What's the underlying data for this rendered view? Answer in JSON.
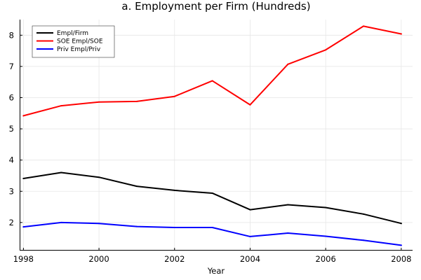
{
  "chart_data": {
    "type": "line",
    "title": "a. Employment per Firm (Hundreds)",
    "xlabel": "Year",
    "ylabel": "",
    "xlim": [
      1997.9,
      2008.3
    ],
    "ylim": [
      1.1,
      8.5
    ],
    "xticks": [
      1998,
      2000,
      2002,
      2004,
      2006,
      2008
    ],
    "yticks": [
      2,
      3,
      4,
      5,
      6,
      7,
      8
    ],
    "grid": true,
    "legend_position": "top-left",
    "x": [
      1998,
      1999,
      2000,
      2001,
      2002,
      2003,
      2004,
      2005,
      2006,
      2007,
      2008
    ],
    "series": [
      {
        "name": "Empl/Firm",
        "color": "#000000",
        "values": [
          3.41,
          3.6,
          3.45,
          3.16,
          3.03,
          2.94,
          2.41,
          2.57,
          2.48,
          2.27,
          1.97
        ]
      },
      {
        "name": "SOE Empl/SOE",
        "color": "#ff0000",
        "values": [
          5.42,
          5.74,
          5.86,
          5.88,
          6.04,
          6.54,
          5.77,
          7.07,
          7.53,
          8.29,
          8.04
        ]
      },
      {
        "name": "Priv Empl/Priv",
        "color": "#0000ff",
        "values": [
          1.86,
          2.0,
          1.97,
          1.87,
          1.84,
          1.84,
          1.55,
          1.66,
          1.56,
          1.43,
          1.27
        ]
      }
    ]
  }
}
